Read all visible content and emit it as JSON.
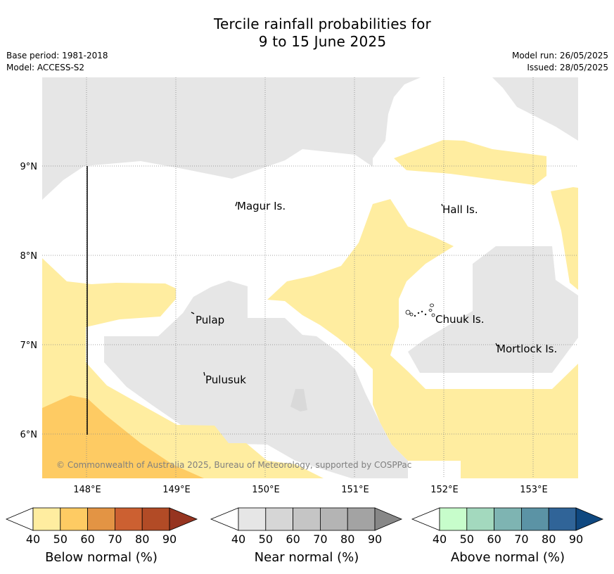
{
  "title_line1": "Tercile rainfall probabilities for",
  "title_line2": "9 to 15 June 2025",
  "base_period": "Base period: 1981-2018",
  "model": "Model: ACCESS-S2",
  "model_run": "Model run: 26/05/2025",
  "issued": "Issued: 28/05/2025",
  "lat_labels": [
    "9°N",
    "8°N",
    "7°N",
    "6°N"
  ],
  "lon_labels": [
    "148°E",
    "149°E",
    "150°E",
    "151°E",
    "152°E",
    "153°E"
  ],
  "places": {
    "magur": "Magur Is.",
    "hall": "Hall Is.",
    "pulap": "Pulap",
    "chuuk": "Chuuk Is.",
    "mortlock": "Mortlock Is.",
    "pulusuk": "Pulusuk"
  },
  "copyright": "© Commonwealth of Australia 2025, Bureau of Meteorology, supported by COSPPac",
  "colorbars": [
    {
      "label": "Below normal (%)",
      "ticks": [
        "40",
        "50",
        "60",
        "70",
        "80",
        "90"
      ],
      "colors": [
        "#ffeda0",
        "#fecb63",
        "#e39444",
        "#cc6031",
        "#b24b26",
        "#963420"
      ]
    },
    {
      "label": "Near normal (%)",
      "ticks": [
        "40",
        "50",
        "60",
        "70",
        "80",
        "90"
      ],
      "colors": [
        "#e6e6e6",
        "#d6d6d6",
        "#c5c5c5",
        "#b4b4b4",
        "#a3a3a3",
        "#878787"
      ]
    },
    {
      "label": "Above normal (%)",
      "ticks": [
        "40",
        "50",
        "60",
        "70",
        "80",
        "90"
      ],
      "colors": [
        "#c7fdcb",
        "#a3d9be",
        "#7eb4b2",
        "#5b93a5",
        "#306498",
        "#0f4880"
      ]
    }
  ]
}
